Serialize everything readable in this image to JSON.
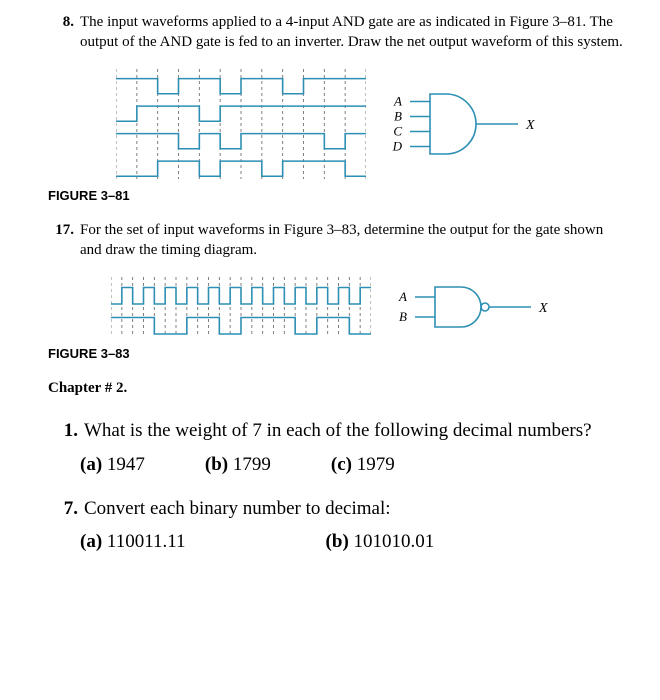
{
  "problems": {
    "p8": {
      "number": "8.",
      "text": "The input waveforms applied to a 4-input AND gate are as indicated in Figure 3–81. The output of the AND gate is fed to an inverter. Draw the net output waveform of this system."
    },
    "p17": {
      "number": "17.",
      "text": "For the set of input waveforms in Figure 3–83, determine the output for the gate shown and draw the timing diagram."
    }
  },
  "figures": {
    "f381": {
      "label": "FIGURE 3–81",
      "color": "#2d8fb3",
      "dash": "#000000",
      "gate_inputs": [
        "A",
        "B",
        "C",
        "D"
      ],
      "gate_output": "X",
      "gate_type": "AND",
      "wave_width": 250,
      "wave_height": 110,
      "dash_count": 12,
      "rows": 4,
      "waveforms": [
        [
          1,
          1,
          0,
          1,
          1,
          0,
          1,
          1,
          0,
          1,
          1,
          1
        ],
        [
          0,
          1,
          1,
          1,
          0,
          1,
          1,
          1,
          1,
          1,
          1,
          1
        ],
        [
          1,
          1,
          1,
          0,
          1,
          0,
          1,
          1,
          1,
          1,
          0,
          1
        ],
        [
          0,
          0,
          1,
          1,
          0,
          1,
          1,
          0,
          1,
          1,
          1,
          0
        ]
      ]
    },
    "f383": {
      "label": "FIGURE 3–83",
      "color": "#2d8fb3",
      "dash": "#000000",
      "gate_inputs": [
        "A",
        "B"
      ],
      "gate_output": "X",
      "gate_type": "NAND",
      "wave_width": 260,
      "wave_height": 60,
      "dash_count": 24,
      "rows": 2,
      "waveforms": [
        [
          0,
          1,
          0,
          1,
          0,
          1,
          0,
          1,
          0,
          1,
          0,
          1,
          0,
          1,
          0,
          1,
          0,
          1,
          0,
          1,
          0,
          1,
          0,
          1
        ],
        [
          1,
          1,
          1,
          1,
          0,
          0,
          0,
          1,
          1,
          1,
          0,
          0,
          1,
          1,
          1,
          1,
          1,
          0,
          0,
          1,
          1,
          1,
          0,
          0
        ]
      ]
    }
  },
  "chapter": "Chapter # 2.",
  "big": {
    "q1": {
      "number": "1.",
      "text": "What is the weight of 7 in each of the following decimal numbers?",
      "opts": [
        {
          "tag": "(a)",
          "val": "1947"
        },
        {
          "tag": "(b)",
          "val": "1799"
        },
        {
          "tag": "(c)",
          "val": "1979"
        }
      ]
    },
    "q7": {
      "number": "7.",
      "text": "Convert each binary number to decimal:",
      "opts": [
        {
          "tag": "(a)",
          "val": "110011.11"
        },
        {
          "tag": "(b)",
          "val": "101010.01"
        }
      ]
    }
  },
  "style": {
    "stroke_width": 1.6
  }
}
